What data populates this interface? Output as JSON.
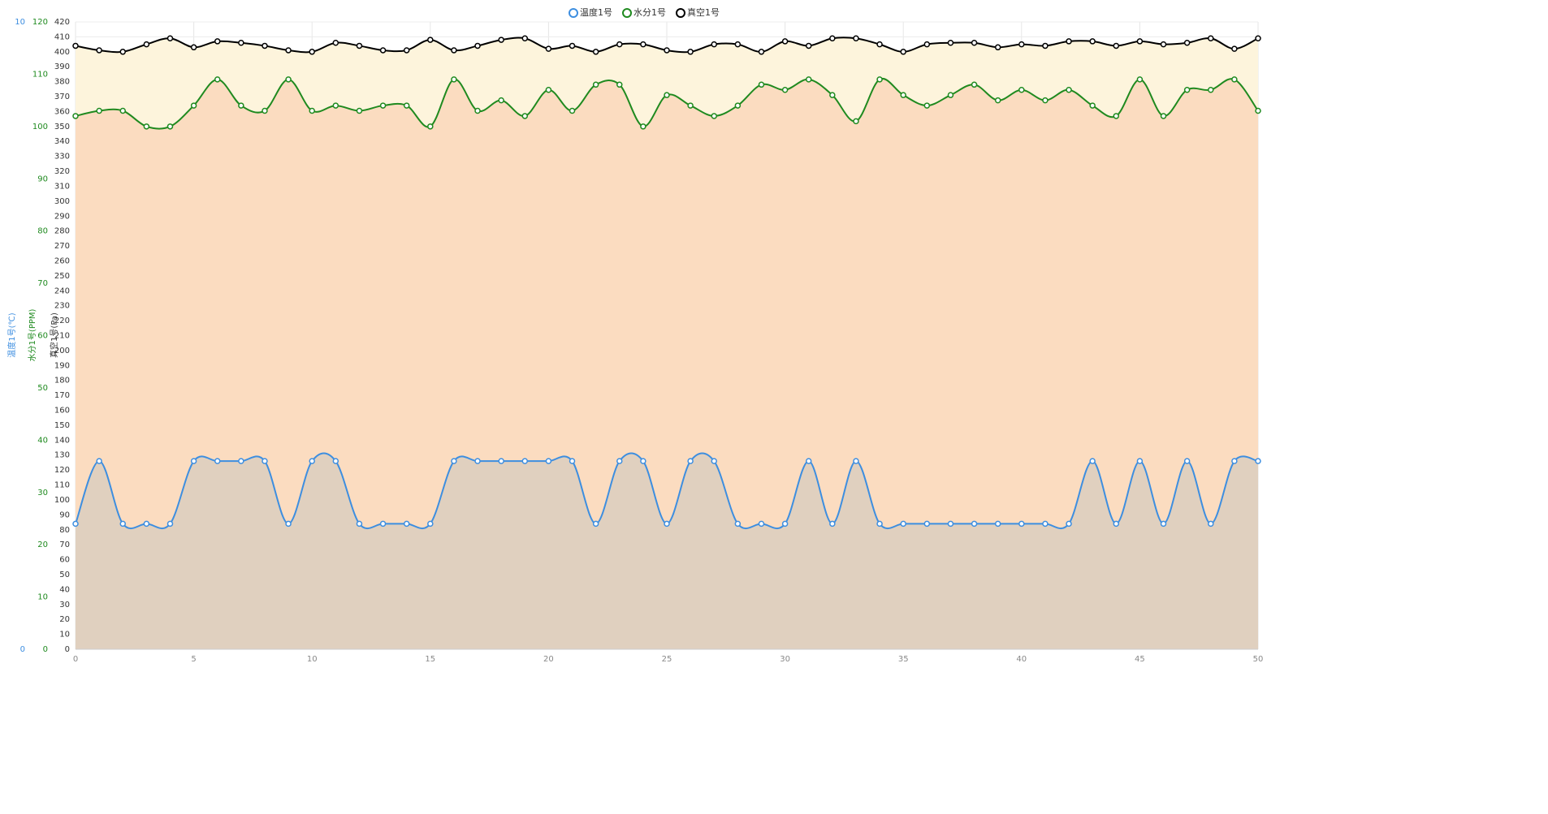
{
  "chart_data": {
    "type": "line",
    "x": [
      0,
      1,
      2,
      3,
      4,
      5,
      6,
      7,
      8,
      9,
      10,
      11,
      12,
      13,
      14,
      15,
      16,
      17,
      18,
      19,
      20,
      21,
      22,
      23,
      24,
      25,
      26,
      27,
      28,
      29,
      30,
      31,
      32,
      33,
      34,
      35,
      36,
      37,
      38,
      39,
      40,
      41,
      42,
      43,
      44,
      45,
      46,
      47,
      48,
      49,
      50
    ],
    "xlim": [
      0,
      50
    ],
    "xticks": [
      0,
      5,
      10,
      15,
      20,
      25,
      30,
      35,
      40,
      45,
      50
    ],
    "ylim": [
      0,
      420
    ],
    "yticks": [
      0,
      10,
      20,
      30,
      40,
      50,
      60,
      70,
      80,
      90,
      100,
      110,
      120,
      130,
      140,
      150,
      160,
      170,
      180,
      190,
      200,
      210,
      220,
      230,
      240,
      250,
      260,
      270,
      280,
      290,
      300,
      310,
      320,
      330,
      340,
      350,
      360,
      370,
      380,
      390,
      400,
      410,
      420
    ],
    "ylabel": "真空1号(Pa)",
    "y2lim": [
      0,
      120
    ],
    "y2ticks": [
      0,
      10,
      20,
      30,
      40,
      50,
      60,
      70,
      80,
      90,
      100,
      110,
      120
    ],
    "y2label": "水分1号(PPM)",
    "y3lim": [
      0,
      10
    ],
    "y3ticks": [
      0,
      10
    ],
    "y3label": "温度1号(℃)",
    "grid": true,
    "legend": "top",
    "series": [
      {
        "name": "温度1号",
        "color": "#3d8ee0",
        "fill": "#e0d0bf",
        "axis": "y3",
        "values": [
          2,
          3,
          2,
          2,
          2,
          3,
          3,
          3,
          3,
          2,
          3,
          3,
          2,
          2,
          2,
          2,
          3,
          3,
          3,
          3,
          3,
          3,
          2,
          3,
          3,
          2,
          3,
          3,
          2,
          2,
          2,
          3,
          2,
          3,
          2,
          2,
          2,
          2,
          2,
          2,
          2,
          2,
          2,
          3,
          2,
          3,
          2,
          3,
          2,
          3,
          3
        ]
      },
      {
        "name": "水分1号",
        "color": "#1f8a1f",
        "fill": "#fbdcc0",
        "axis": "y2",
        "values": [
          102,
          103,
          103,
          100,
          100,
          104,
          109,
          104,
          103,
          109,
          103,
          104,
          103,
          104,
          104,
          100,
          109,
          103,
          105,
          102,
          107,
          103,
          108,
          108,
          100,
          106,
          104,
          102,
          104,
          108,
          107,
          109,
          106,
          101,
          109,
          106,
          104,
          106,
          108,
          105,
          107,
          105,
          107,
          104,
          102,
          109,
          102,
          107,
          107,
          109,
          103
        ]
      },
      {
        "name": "真空1号",
        "color": "#000000",
        "fill": "#fdf4dc",
        "axis": "y",
        "values": [
          404,
          401,
          400,
          405,
          409,
          403,
          407,
          406,
          404,
          401,
          400,
          406,
          404,
          401,
          401,
          408,
          401,
          404,
          408,
          409,
          402,
          404,
          400,
          405,
          405,
          401,
          400,
          405,
          405,
          400,
          407,
          404,
          409,
          409,
          405,
          400,
          405,
          406,
          406,
          403,
          405,
          404,
          407,
          407,
          404,
          407,
          405,
          406,
          409,
          402,
          409
        ]
      }
    ]
  }
}
